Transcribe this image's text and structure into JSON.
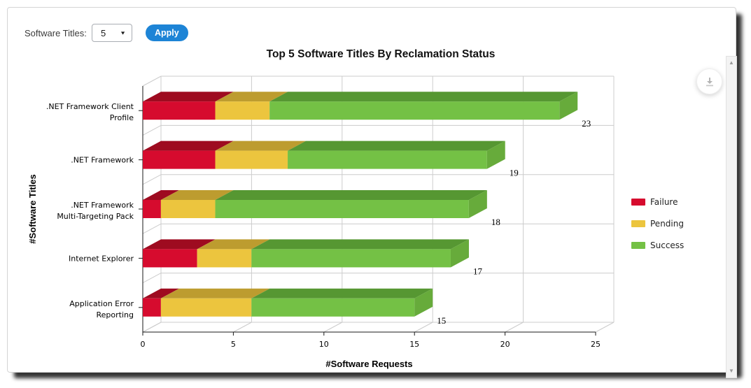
{
  "controls": {
    "label": "Software Titles:",
    "dropdown_value": "5",
    "apply_label": "Apply",
    "accent_color": "#1d84d6"
  },
  "glyphs": {
    "dropdown_arrow": "▼",
    "scroll_up": "▲",
    "scroll_down": "▼"
  },
  "chart_data": {
    "type": "bar",
    "variant": "horizontal-stacked-3d",
    "title": "Top 5 Software Titles By Reclamation Status",
    "xlabel": "#Software Requests",
    "ylabel": "#Software Titles",
    "categories": [
      ".NET Framework Client Profile",
      ".NET Framework",
      ".NET Framework Multi-Targeting Pack",
      "Internet Explorer",
      "Application Error Reporting"
    ],
    "series": [
      {
        "name": "Failure",
        "values": [
          4,
          4,
          1,
          3,
          1
        ],
        "color": "#d60b2e",
        "color_top": "#9e0b20",
        "color_side": "#bc0926"
      },
      {
        "name": "Pending",
        "values": [
          3,
          4,
          3,
          3,
          5
        ],
        "color": "#ecc53e",
        "color_top": "#bd9c2f",
        "color_side": "#d9b535"
      },
      {
        "name": "Success",
        "values": [
          16,
          11,
          14,
          11,
          9
        ],
        "color": "#74c145",
        "color_top": "#569732",
        "color_side": "#67ab3b"
      }
    ],
    "totals": [
      23,
      19,
      18,
      17,
      15
    ],
    "x_ticks": [
      0,
      5,
      10,
      15,
      20,
      25
    ],
    "xlim": [
      0,
      25
    ],
    "grid": true,
    "legend_position": "right",
    "grid_color": "#cccccc",
    "axis_color": "#1a1a1a"
  }
}
